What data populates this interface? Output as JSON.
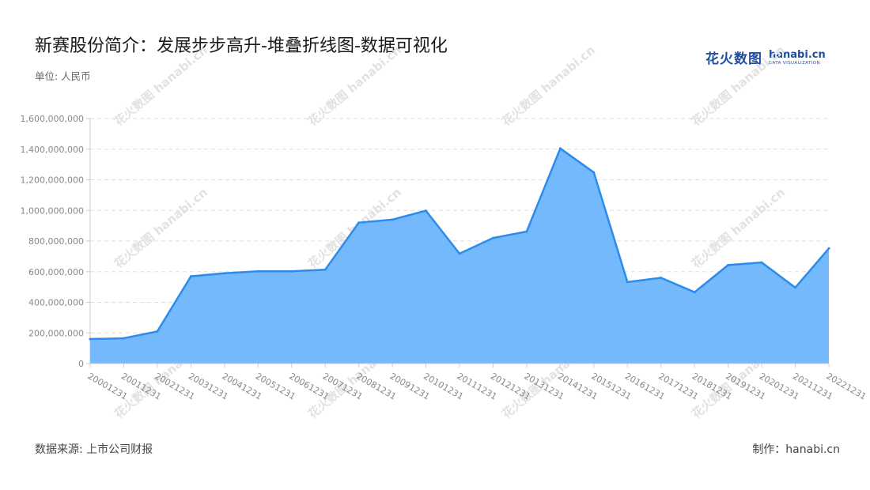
{
  "title": "新赛股份简介：发展步步高升-堆叠折线图-数据可视化",
  "unit_label": "单位: 人民币",
  "source_label": "数据来源: 上市公司财报",
  "credit_label": "制作：hanabi.cn",
  "logo": {
    "cn": "花火数图",
    "en": "hanabi.cn",
    "sub": "DATA VISUALIZATION",
    "watermark": "花火数图 hanabi.cn"
  },
  "colors": {
    "line": "#2b8ced",
    "area": "#74b9fb",
    "grid": "#dddddd",
    "axis": "#cccccc",
    "tick": "#888888"
  },
  "chart_data": {
    "type": "area",
    "x": [
      "20001231",
      "20011231",
      "20021231",
      "20031231",
      "20041231",
      "20051231",
      "20061231",
      "20071231",
      "20081231",
      "20091231",
      "20101231",
      "20111231",
      "20121231",
      "20131231",
      "20141231",
      "20151231",
      "20161231",
      "20171231",
      "20181231",
      "20191231",
      "20201231",
      "20211231",
      "20221231"
    ],
    "series": [
      {
        "values": [
          160000000,
          165000000,
          210000000,
          570000000,
          590000000,
          603000000,
          603000000,
          613000000,
          920000000,
          940000000,
          998000000,
          718000000,
          820000000,
          862000000,
          1405000000,
          1248000000,
          532000000,
          560000000,
          466000000,
          643000000,
          660000000,
          496000000,
          752000000
        ]
      }
    ],
    "ylim": [
      0,
      1600000000
    ],
    "yticks": [
      0,
      200000000,
      400000000,
      600000000,
      800000000,
      1000000000,
      1200000000,
      1400000000,
      1600000000
    ],
    "ytick_labels": [
      "0",
      "200,000,000",
      "400,000,000",
      "600,000,000",
      "800,000,000",
      "1,000,000,000",
      "1,200,000,000",
      "1,400,000,000",
      "1,600,000,000"
    ],
    "grid": true,
    "legend": "none"
  }
}
